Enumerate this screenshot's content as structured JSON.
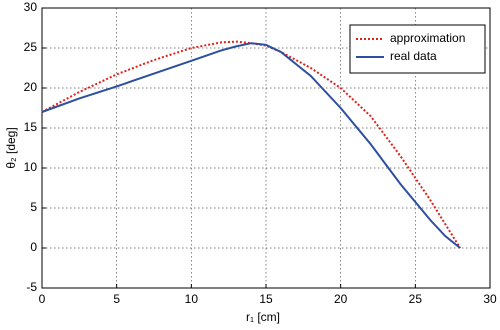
{
  "chart_data": {
    "type": "line",
    "xlabel": "r₁ [cm]",
    "ylabel": "θ₂ [deg]",
    "x": [
      0,
      2.5,
      5,
      7.5,
      10,
      12,
      13,
      14,
      15,
      16,
      18,
      20,
      22,
      24,
      26,
      27,
      28
    ],
    "series": [
      {
        "name": "approximation",
        "color": "#e0201b",
        "dash": "dotted",
        "values": [
          17,
          19.5,
          21.7,
          23.5,
          25,
          25.7,
          25.8,
          25.6,
          25.3,
          24.5,
          22.5,
          20,
          16.5,
          11.5,
          6,
          3,
          0
        ]
      },
      {
        "name": "real data",
        "color": "#2d4fa0",
        "dash": "solid",
        "values": [
          17,
          18.7,
          20.2,
          21.8,
          23.4,
          24.7,
          25.2,
          25.6,
          25.4,
          24.5,
          21.5,
          17.5,
          13,
          8,
          3.5,
          1.5,
          0
        ]
      }
    ],
    "xlim": [
      0,
      30
    ],
    "xticks": [
      0,
      5,
      10,
      15,
      20,
      25,
      30
    ],
    "ylim": [
      -5,
      30
    ],
    "yticks": [
      -5,
      0,
      5,
      10,
      15,
      20,
      25,
      30
    ],
    "grid": true,
    "legend": "upper right"
  }
}
